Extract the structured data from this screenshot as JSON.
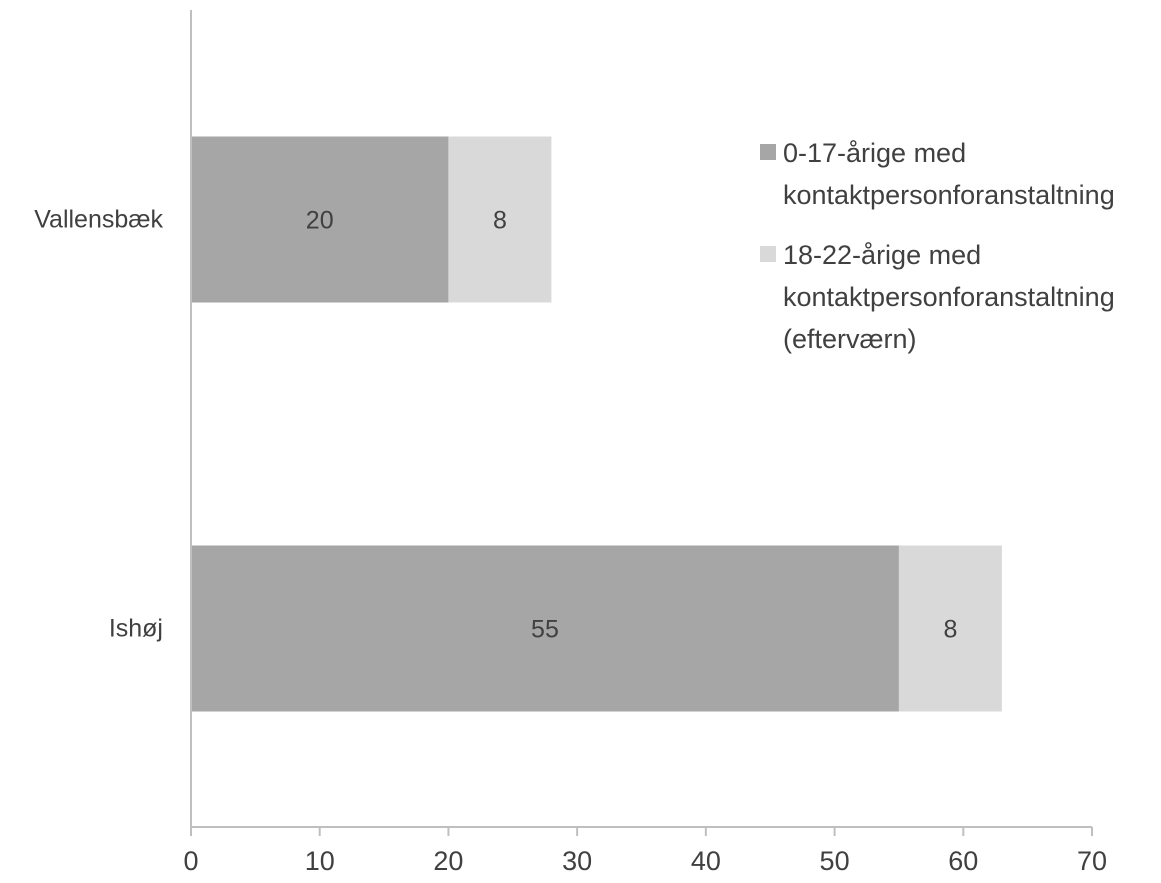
{
  "chart_data": {
    "type": "bar",
    "orientation": "horizontal",
    "stacked": true,
    "title": "",
    "xlabel": "",
    "ylabel": "",
    "categories": [
      "Vallensbæk",
      "Ishøj"
    ],
    "series": [
      {
        "name": "0-17-årige med kontaktpersonforanstaltning",
        "values": [
          20,
          55
        ],
        "color": "#a6a6a6"
      },
      {
        "name": "18-22-årige med kontaktpersonforanstaltning (efterværn)",
        "values": [
          8,
          8
        ],
        "color": "#d9d9d9"
      }
    ],
    "xlim": [
      0,
      70
    ],
    "xticks": [
      0,
      10,
      20,
      30,
      40,
      50,
      60,
      70
    ],
    "grid": false,
    "legend": "right",
    "data_labels": true
  },
  "legend": {
    "items": [
      {
        "text": "0-17-årige med\nkontaktpersonforanstaltning",
        "color": "#a6a6a6"
      },
      {
        "text": "18-22-årige med\nkontaktpersonforanstaltning\n(efterværn)",
        "color": "#d9d9d9"
      }
    ]
  }
}
